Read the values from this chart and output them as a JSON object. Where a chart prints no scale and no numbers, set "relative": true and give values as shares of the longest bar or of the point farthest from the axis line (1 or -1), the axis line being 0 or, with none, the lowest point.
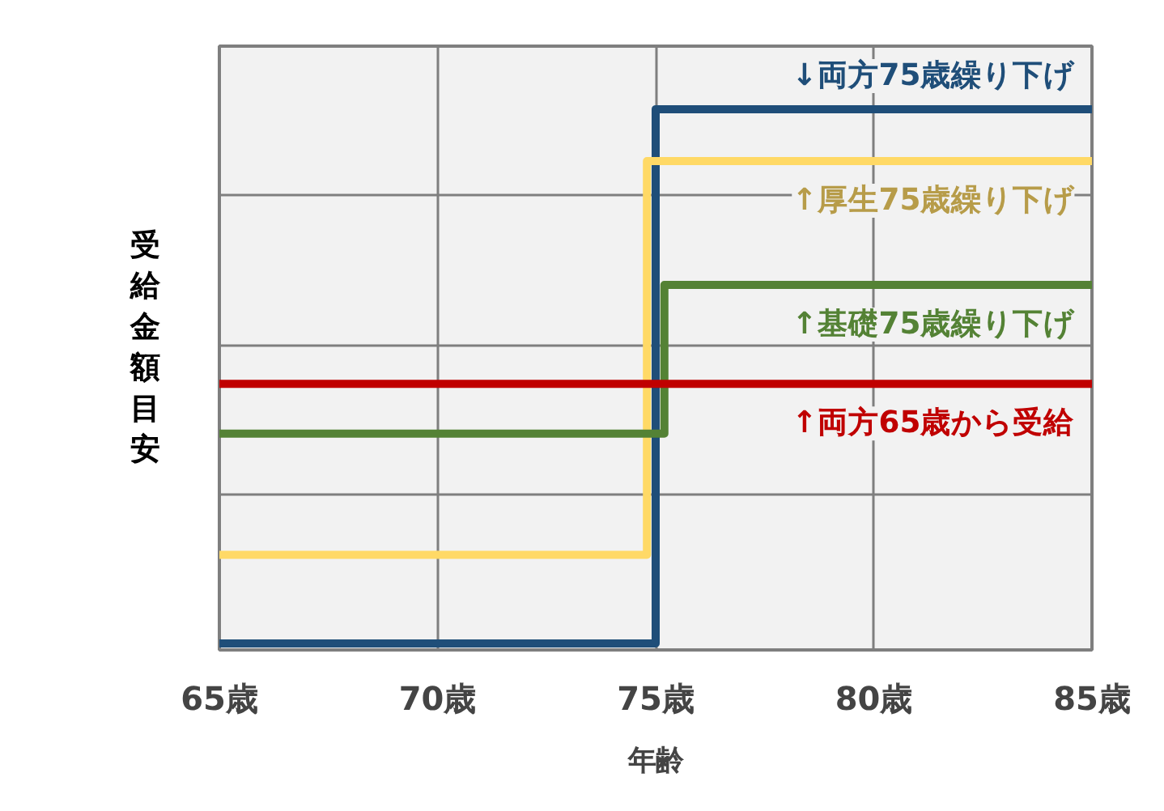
{
  "chart_data": {
    "type": "step",
    "relative": true,
    "xlabel": "年齢",
    "ylabel": "受給金額目安",
    "xlim": [
      65,
      85
    ],
    "xticks": [
      {
        "value": 65,
        "label": "65歳"
      },
      {
        "value": 70,
        "label": "70歳"
      },
      {
        "value": 75,
        "label": "75歳"
      },
      {
        "value": 80,
        "label": "80歳"
      },
      {
        "value": 85,
        "label": "85歳"
      }
    ],
    "grid": true,
    "tick_labels": "x",
    "line_style": "solid",
    "marker": "none",
    "series": [
      {
        "name": "↓両方75歳繰り下げ",
        "color": "#1f4e79",
        "x": [
          65,
          75,
          85
        ],
        "values": [
          0,
          1,
          1
        ]
      },
      {
        "name": "↑厚生75歳繰り下げ",
        "color": "#ffd966",
        "x": [
          65,
          74.8,
          85
        ],
        "values": [
          0.166,
          0.903,
          0.903
        ]
      },
      {
        "name": "↑基礎75歳繰り下げ",
        "color": "#548235",
        "x": [
          65,
          75.2,
          85
        ],
        "values": [
          0.393,
          0.671,
          0.671
        ]
      },
      {
        "name": "↑両方65歳から受給",
        "color": "#c00000",
        "x": [
          65,
          85
        ],
        "values": [
          0.486,
          0.486
        ]
      }
    ]
  }
}
